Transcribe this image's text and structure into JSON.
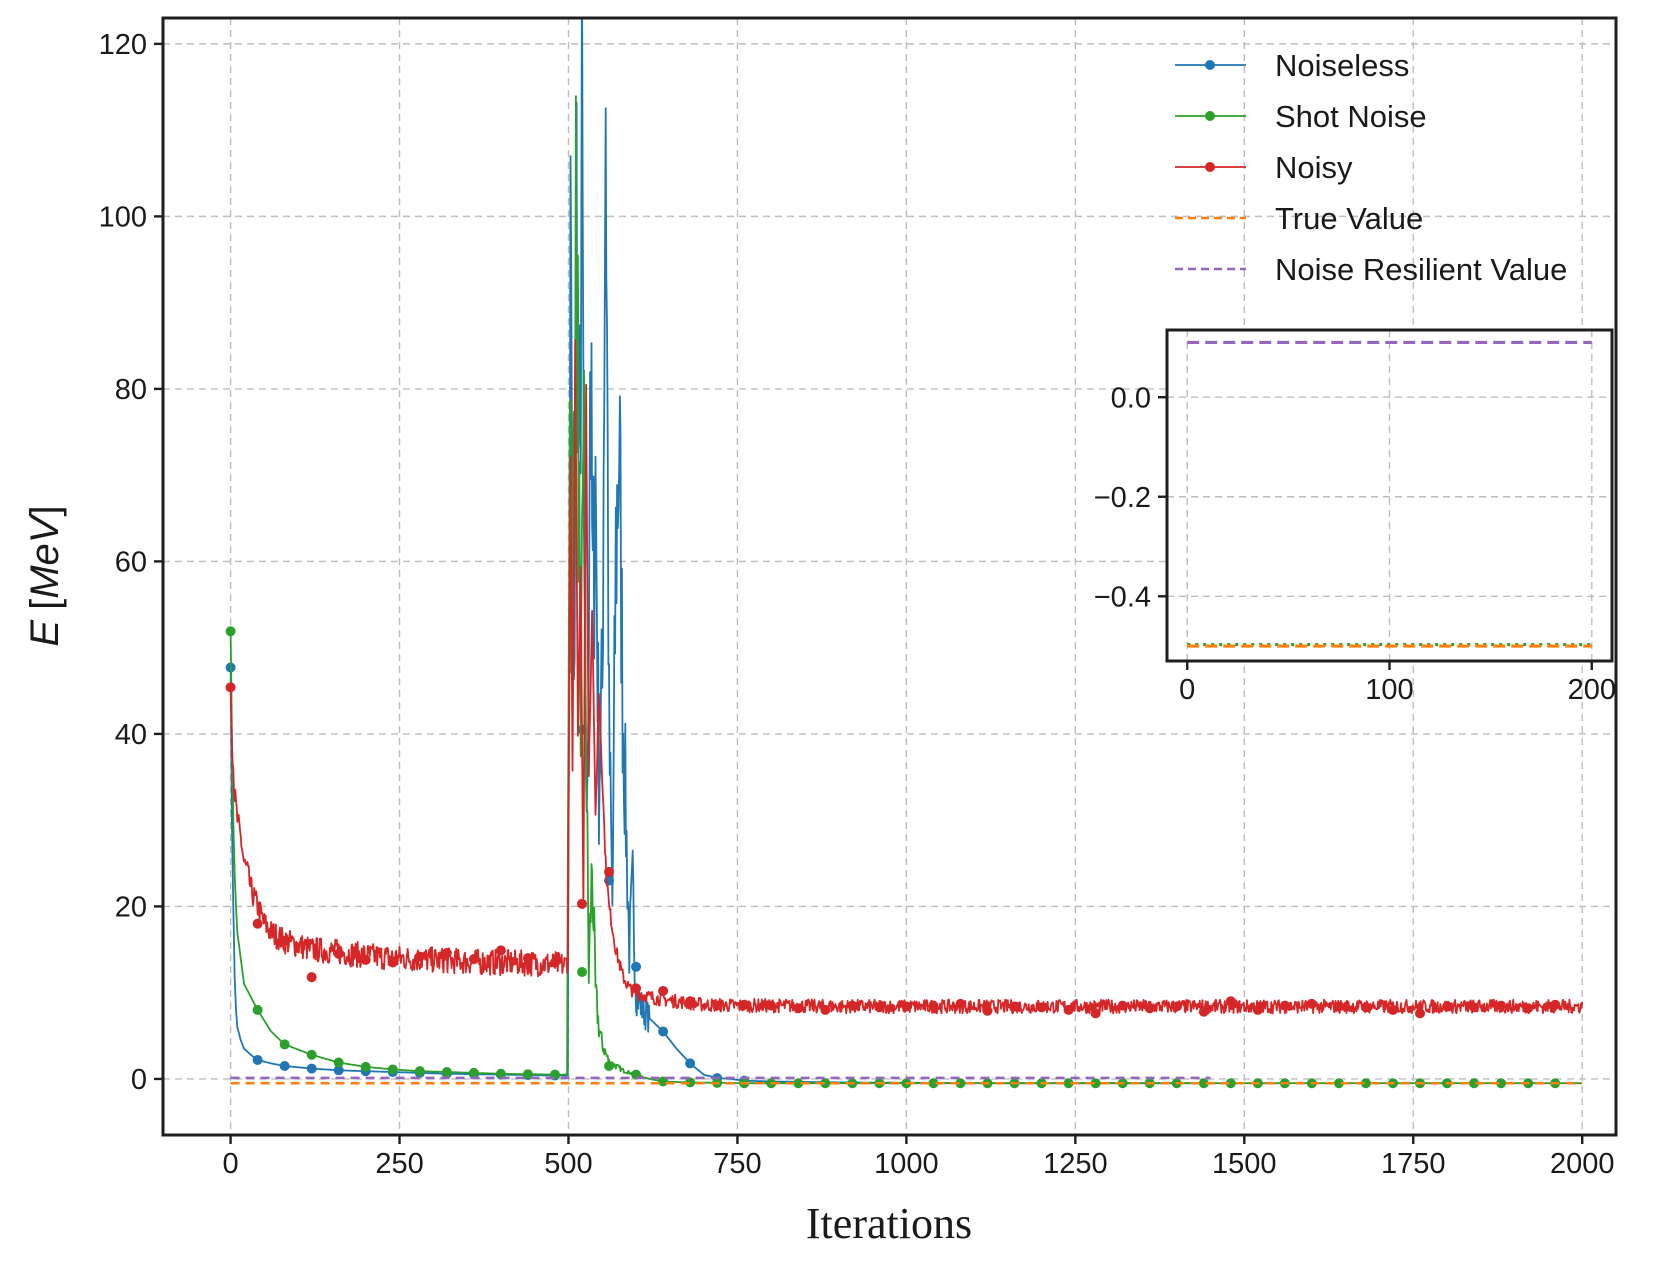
{
  "chart_data": [
    {
      "type": "line",
      "title": "",
      "xlabel": "Iterations",
      "ylabel": "E [MeV]",
      "ylabel_parts": {
        "symbol": "E",
        "unit": "MeV"
      },
      "xlim": [
        -100,
        2050
      ],
      "ylim": [
        -6.5,
        123
      ],
      "xticks": [
        0,
        250,
        500,
        750,
        1000,
        1250,
        1500,
        1750,
        2000
      ],
      "xtick_labels": [
        "0",
        "250",
        "500",
        "750",
        "1000",
        "1250",
        "1500",
        "1750",
        "2000"
      ],
      "yticks": [
        0,
        20,
        40,
        60,
        80,
        100,
        120
      ],
      "ytick_labels": [
        "0",
        "20",
        "40",
        "60",
        "80",
        "100",
        "120"
      ],
      "grid": true,
      "legend_position": "top-right",
      "series": [
        {
          "name": "Noiseless",
          "color": "#1f77b4",
          "style": "line-markers",
          "x": [
            0,
            2,
            4,
            6,
            8,
            10,
            15,
            20,
            30,
            40,
            60,
            80,
            120,
            160,
            200,
            240,
            280,
            320,
            360,
            400,
            440,
            480,
            495,
            499,
            503,
            508,
            512,
            516,
            520,
            524,
            528,
            532,
            536,
            540,
            545,
            550,
            555,
            560,
            565,
            570,
            575,
            580,
            585,
            590,
            595,
            600,
            610,
            620,
            640,
            660,
            680,
            700,
            720,
            740,
            760,
            800,
            900,
            1000,
            1100,
            1200,
            1300,
            1400,
            1450
          ],
          "y": [
            47.7,
            30,
            20,
            12,
            8,
            6,
            4.5,
            3.5,
            2.8,
            2.2,
            1.8,
            1.5,
            1.2,
            1.0,
            0.9,
            0.8,
            0.7,
            0.6,
            0.55,
            0.5,
            0.45,
            0.4,
            0.4,
            0.5,
            95,
            40,
            103,
            65,
            108,
            45,
            30,
            85,
            55,
            70,
            35,
            45,
            117,
            40,
            20,
            60,
            75,
            45,
            30,
            15,
            22,
            10,
            8,
            7,
            5.5,
            3.5,
            1.8,
            0.5,
            0.1,
            0.0,
            -0.2,
            -0.3,
            -0.4,
            -0.45,
            -0.48,
            -0.5,
            -0.5,
            -0.5,
            -0.5
          ],
          "marker_x": [
            0,
            40,
            80,
            120,
            160,
            200,
            240,
            280,
            320,
            360,
            400,
            440,
            480,
            520,
            560,
            600,
            640,
            680,
            720,
            760
          ],
          "marker_y": [
            47.7,
            2.2,
            1.5,
            1.2,
            1.0,
            0.9,
            0.8,
            0.7,
            0.6,
            0.55,
            0.5,
            0.45,
            0.4,
            40.5,
            23,
            13,
            5.5,
            1.8,
            0.1,
            -0.2
          ]
        },
        {
          "name": "Shot Noise",
          "color": "#2ca02c",
          "style": "line-markers",
          "x": [
            0,
            2,
            4,
            6,
            8,
            10,
            15,
            20,
            30,
            40,
            60,
            80,
            120,
            160,
            200,
            240,
            280,
            320,
            360,
            400,
            440,
            480,
            495,
            498,
            502,
            505,
            510,
            515,
            518,
            522,
            526,
            530,
            535,
            540,
            545,
            550,
            560,
            570,
            580,
            600,
            620,
            640,
            680,
            760,
            900,
            1100,
            1300,
            1500,
            1700,
            2000
          ],
          "y": [
            51.9,
            40,
            30,
            24,
            20,
            17,
            14,
            11,
            9.5,
            8,
            5.5,
            4.0,
            2.8,
            1.9,
            1.4,
            1.1,
            0.9,
            0.8,
            0.7,
            0.6,
            0.55,
            0.5,
            0.5,
            0.5,
            92,
            45,
            99,
            75,
            30,
            85,
            40,
            12,
            25,
            10,
            6,
            4,
            2,
            1.5,
            1.0,
            0.5,
            0.0,
            -0.3,
            -0.4,
            -0.5,
            -0.5,
            -0.5,
            -0.5,
            -0.5,
            -0.5,
            -0.5
          ],
          "marker_x": [
            0,
            40,
            80,
            120,
            160,
            200,
            240,
            280,
            320,
            360,
            400,
            440,
            480,
            520,
            560,
            600,
            640,
            680,
            720,
            760,
            800,
            840,
            880,
            920,
            960,
            1000,
            1040,
            1080,
            1120,
            1160,
            1200,
            1240,
            1280,
            1320,
            1360,
            1400,
            1440,
            1480,
            1520,
            1560,
            1600,
            1640,
            1680,
            1720,
            1760,
            1800,
            1840,
            1880,
            1920,
            1960
          ],
          "marker_y": [
            51.9,
            8.0,
            4.0,
            2.8,
            1.9,
            1.4,
            1.1,
            0.9,
            0.8,
            0.7,
            0.6,
            0.55,
            0.5,
            12.4,
            1.5,
            0.5,
            -0.3,
            -0.4,
            -0.45,
            -0.5,
            -0.5,
            -0.5,
            -0.5,
            -0.5,
            -0.5,
            -0.5,
            -0.5,
            -0.5,
            -0.5,
            -0.5,
            -0.5,
            -0.5,
            -0.5,
            -0.5,
            -0.5,
            -0.5,
            -0.5,
            -0.5,
            -0.5,
            -0.5,
            -0.5,
            -0.5,
            -0.5,
            -0.5,
            -0.5,
            -0.5,
            -0.5,
            -0.5,
            -0.5,
            -0.5
          ]
        },
        {
          "name": "Noisy",
          "color": "#d62728",
          "style": "line-markers",
          "x": [
            0,
            3,
            6,
            10,
            15,
            20,
            25,
            30,
            35,
            40,
            50,
            60,
            70,
            80,
            100,
            120,
            150,
            200,
            250,
            300,
            350,
            400,
            450,
            480,
            495,
            499,
            503,
            506,
            510,
            514,
            518,
            522,
            526,
            530,
            535,
            540,
            545,
            550,
            555,
            560,
            570,
            580,
            590,
            600,
            620,
            640,
            660,
            680,
            700,
            750,
            800,
            900,
            1000,
            1100,
            1200,
            1300,
            1400,
            1500,
            1600,
            1700,
            1800,
            1900,
            2000
          ],
          "y": [
            45.4,
            38,
            33,
            30,
            28,
            25,
            24,
            22,
            21,
            20,
            18,
            17,
            16.5,
            16,
            15.5,
            15,
            14.8,
            14.3,
            14.0,
            13.8,
            13.6,
            13.5,
            13.4,
            13.3,
            13.2,
            14,
            72,
            35,
            85,
            40,
            60,
            20,
            80,
            35,
            55,
            30,
            45,
            35,
            25,
            20,
            15,
            12,
            10.5,
            10,
            9.5,
            9.2,
            9.0,
            8.8,
            8.6,
            8.5,
            8.5,
            8.4,
            8.4,
            8.4,
            8.4,
            8.4,
            8.4,
            8.4,
            8.4,
            8.4,
            8.4,
            8.4,
            8.4
          ],
          "marker_x": [
            0,
            40,
            80,
            120,
            160,
            200,
            240,
            280,
            320,
            360,
            400,
            440,
            480,
            520,
            560,
            600,
            640,
            680,
            720,
            760,
            800,
            840,
            880,
            920,
            960,
            1000,
            1040,
            1080,
            1120,
            1160,
            1200,
            1240,
            1280,
            1320,
            1360,
            1400,
            1440,
            1480,
            1520,
            1560,
            1600,
            1640,
            1680,
            1720,
            1760,
            1800,
            1840,
            1880,
            1920,
            1960
          ],
          "marker_y": [
            45.4,
            18,
            16,
            11.8,
            14.5,
            13.8,
            13.5,
            14.2,
            14.6,
            13.9,
            14.9,
            14.0,
            13.5,
            20.3,
            24,
            10.5,
            10.2,
            9.0,
            8.5,
            8.6,
            8.5,
            8.2,
            8.0,
            8.5,
            8.3,
            8.4,
            8.5,
            8.7,
            7.9,
            8.4,
            8.3,
            8.0,
            7.6,
            8.5,
            8.2,
            8.4,
            7.8,
            9.0,
            8.0,
            8.5,
            8.7,
            8.4,
            8.3,
            8.0,
            7.6,
            8.4,
            8.3,
            8.5,
            8.2,
            8.6
          ],
          "noise": true
        },
        {
          "name": "True Value",
          "color": "#ff7f0e",
          "style": "dashed",
          "x": [
            0,
            2000
          ],
          "y": [
            -0.5,
            -0.5
          ]
        },
        {
          "name": "Noise Resilient Value",
          "color": "#9467bd",
          "style": "dashed",
          "x": [
            0,
            1450
          ],
          "y": [
            0.11,
            0.11
          ]
        }
      ]
    },
    {
      "type": "line",
      "role": "inset",
      "title": "",
      "xlim": [
        -10,
        210
      ],
      "ylim": [
        -0.53,
        0.135
      ],
      "xticks": [
        0,
        100,
        200
      ],
      "xtick_labels": [
        "0",
        "100",
        "200"
      ],
      "yticks": [
        0.0,
        -0.2,
        -0.4
      ],
      "ytick_labels": [
        "0.0",
        "−0.2",
        "−0.4"
      ],
      "grid": true,
      "series": [
        {
          "name": "Noise Resilient Value",
          "color": "#9467bd",
          "style": "dashed",
          "x": [
            0,
            200
          ],
          "y": [
            0.11,
            0.11
          ]
        },
        {
          "name": "Shot Noise",
          "color": "#2ca02c",
          "style": "dotted",
          "x": [
            0,
            200
          ],
          "y": [
            -0.497,
            -0.497
          ]
        },
        {
          "name": "True Value",
          "color": "#ff7f0e",
          "style": "dashed",
          "x": [
            0,
            200
          ],
          "y": [
            -0.5,
            -0.5
          ]
        }
      ]
    }
  ]
}
